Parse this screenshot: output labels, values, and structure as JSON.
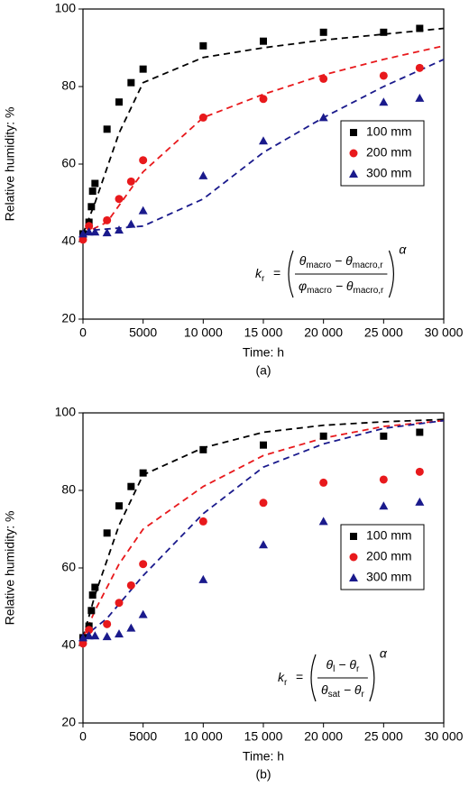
{
  "chart_data": [
    {
      "type": "scatter",
      "panel_label": "(a)",
      "x_label": "Time: h",
      "y_label": "Relative humidity: %",
      "xlim": [
        0,
        30000
      ],
      "ylim": [
        20,
        100
      ],
      "xticks": [
        0,
        5000,
        {
          "value": 10000,
          "label": "10 000"
        },
        {
          "value": 15000,
          "label": "15 000"
        },
        {
          "value": 20000,
          "label": "20 000"
        },
        {
          "value": 25000,
          "label": "25 000"
        },
        {
          "value": 30000,
          "label": "30 000"
        }
      ],
      "yticks": [
        20,
        40,
        60,
        80,
        100
      ],
      "legend": "center right",
      "series": [
        {
          "name": "100 mm",
          "color": "#000000",
          "marker": "square",
          "x": [
            0,
            500,
            700,
            800,
            1000,
            2000,
            3000,
            4000,
            5000,
            10000,
            15000,
            20000,
            25000,
            28000
          ],
          "values": [
            42,
            45,
            49,
            53,
            55,
            69,
            76,
            81,
            84.5,
            90.5,
            91.7,
            94,
            94,
            95
          ]
        },
        {
          "name": "200 mm",
          "color": "#e8191c",
          "marker": "circle",
          "x": [
            0,
            500,
            2000,
            3000,
            4000,
            5000,
            10000,
            15000,
            20000,
            25000,
            28000
          ],
          "values": [
            40.5,
            44,
            45.5,
            51,
            55.5,
            61,
            72,
            76.8,
            82,
            82.8,
            84.8
          ]
        },
        {
          "name": "300 mm",
          "color": "#1a1a8c",
          "marker": "triangle",
          "x": [
            0,
            500,
            1000,
            2000,
            3000,
            4000,
            5000,
            10000,
            15000,
            20000,
            25000,
            28000
          ],
          "values": [
            42,
            42.5,
            42.5,
            42.3,
            43,
            44.5,
            48,
            57,
            66,
            72,
            76,
            77
          ]
        }
      ],
      "fit_lines": [
        {
          "color": "#000000",
          "x": [
            0,
            1000,
            3000,
            5000,
            10000,
            15000,
            20000,
            25000,
            30000
          ],
          "values": [
            42,
            50,
            68,
            81,
            87.5,
            90,
            92,
            93.5,
            95
          ]
        },
        {
          "color": "#e8191c",
          "x": [
            0,
            2000,
            5000,
            10000,
            15000,
            20000,
            25000,
            30000
          ],
          "values": [
            42,
            45,
            58,
            72,
            78,
            83,
            87,
            90.5
          ]
        },
        {
          "color": "#1a1a8c",
          "x": [
            0,
            1000,
            5000,
            10000,
            15000,
            20000,
            25000,
            30000
          ],
          "values": [
            42.5,
            43,
            44,
            51,
            63,
            72,
            80,
            87
          ]
        }
      ],
      "formula": {
        "lhs": "k",
        "lhs_sub": "r",
        "eq": "=",
        "num": [
          {
            "t": "θ",
            "sub": "macro"
          },
          {
            "t": " − θ",
            "sub": "macro,r"
          }
        ],
        "den": [
          {
            "t": "φ",
            "sub": "macro"
          },
          {
            "t": " − θ",
            "sub": "macro,r"
          }
        ],
        "exp": "α"
      }
    },
    {
      "type": "scatter",
      "panel_label": "(b)",
      "x_label": "Time: h",
      "y_label": "Relative humidity: %",
      "xlim": [
        0,
        30000
      ],
      "ylim": [
        20,
        100
      ],
      "xticks": [
        0,
        5000,
        {
          "value": 10000,
          "label": "10 000"
        },
        {
          "value": 15000,
          "label": "15 000"
        },
        {
          "value": 20000,
          "label": "20 000"
        },
        {
          "value": 25000,
          "label": "25 000"
        },
        {
          "value": 30000,
          "label": "30 000"
        }
      ],
      "yticks": [
        20,
        40,
        60,
        80,
        100
      ],
      "legend": "center right",
      "series": [
        {
          "name": "100 mm",
          "color": "#000000",
          "marker": "square",
          "x": [
            0,
            500,
            700,
            800,
            1000,
            2000,
            3000,
            4000,
            5000,
            10000,
            15000,
            20000,
            25000,
            28000
          ],
          "values": [
            42,
            45,
            49,
            53,
            55,
            69,
            76,
            81,
            84.5,
            90.5,
            91.7,
            94,
            94,
            95
          ]
        },
        {
          "name": "200 mm",
          "color": "#e8191c",
          "marker": "circle",
          "x": [
            0,
            500,
            2000,
            3000,
            4000,
            5000,
            10000,
            15000,
            20000,
            25000,
            28000
          ],
          "values": [
            40.5,
            44,
            45.5,
            51,
            55.5,
            61,
            72,
            76.8,
            82,
            82.8,
            84.8
          ]
        },
        {
          "name": "300 mm",
          "color": "#1a1a8c",
          "marker": "triangle",
          "x": [
            0,
            500,
            1000,
            2000,
            3000,
            4000,
            5000,
            10000,
            15000,
            20000,
            25000,
            28000
          ],
          "values": [
            42,
            42.5,
            42.5,
            42.3,
            43,
            44.5,
            48,
            57,
            66,
            72,
            76,
            77
          ]
        }
      ],
      "fit_lines": [
        {
          "color": "#000000",
          "x": [
            0,
            1000,
            3000,
            5000,
            10000,
            15000,
            20000,
            25000,
            30000
          ],
          "values": [
            42,
            53,
            71,
            84,
            91,
            95,
            96.8,
            97.7,
            98.3
          ]
        },
        {
          "color": "#e8191c",
          "x": [
            0,
            1000,
            3000,
            5000,
            10000,
            15000,
            20000,
            25000,
            30000
          ],
          "values": [
            42,
            49,
            61,
            70,
            81,
            89,
            93.5,
            96.5,
            98
          ]
        },
        {
          "color": "#1a1a8c",
          "x": [
            0,
            2000,
            5000,
            10000,
            15000,
            20000,
            25000,
            30000
          ],
          "values": [
            42,
            47,
            58,
            74,
            86,
            92,
            96,
            98
          ]
        }
      ],
      "formula": {
        "lhs": "k",
        "lhs_sub": "r",
        "eq": "=",
        "num": [
          {
            "t": "θ",
            "sub": "l"
          },
          {
            "t": " − θ",
            "sub": "r"
          }
        ],
        "den": [
          {
            "t": "θ",
            "sub": "sat"
          },
          {
            "t": " − θ",
            "sub": "r"
          }
        ],
        "exp": "α"
      }
    }
  ]
}
